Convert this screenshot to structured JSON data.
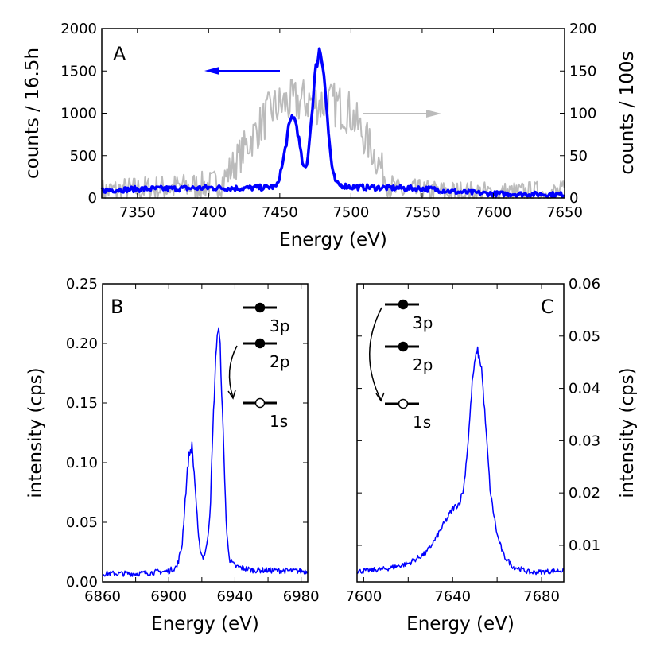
{
  "chart_data": [
    {
      "type": "line",
      "panel_label": "A",
      "xlabel": "Energy (eV)",
      "ylabel": "counts / 16.5h",
      "ylabel_right": "counts / 100s",
      "xlim": [
        7325,
        7650
      ],
      "ylim": [
        0,
        2000
      ],
      "ylim_right": [
        0,
        200
      ],
      "xticks": [
        7350,
        7400,
        7450,
        7500,
        7550,
        7600,
        7650
      ],
      "yticks": [
        0,
        500,
        1000,
        1500,
        2000
      ],
      "yticks_right": [
        0,
        50,
        100,
        150,
        200
      ],
      "grid": false,
      "series": [
        {
          "axis": "left",
          "color": "#0000ff",
          "points": [
            [
              7325,
              90
            ],
            [
              7350,
              105
            ],
            [
              7375,
              110
            ],
            [
              7400,
              120
            ],
            [
              7425,
              115
            ],
            [
              7440,
              125
            ],
            [
              7448,
              135
            ],
            [
              7452,
              400
            ],
            [
              7456,
              800
            ],
            [
              7459,
              990
            ],
            [
              7462,
              850
            ],
            [
              7465,
              500
            ],
            [
              7467,
              330
            ],
            [
              7469,
              380
            ],
            [
              7472,
              900
            ],
            [
              7475,
              1500
            ],
            [
              7478,
              1765
            ],
            [
              7481,
              1500
            ],
            [
              7484,
              800
            ],
            [
              7487,
              300
            ],
            [
              7490,
              160
            ],
            [
              7500,
              130
            ],
            [
              7525,
              120
            ],
            [
              7550,
              110
            ],
            [
              7560,
              100
            ],
            [
              7575,
              70
            ],
            [
              7600,
              50
            ],
            [
              7625,
              45
            ],
            [
              7650,
              40
            ]
          ]
        },
        {
          "axis": "right",
          "color": "#bbbbbb",
          "points": [
            [
              7325,
              8
            ],
            [
              7350,
              10
            ],
            [
              7375,
              12
            ],
            [
              7400,
              15
            ],
            [
              7410,
              20
            ],
            [
              7420,
              45
            ],
            [
              7430,
              70
            ],
            [
              7440,
              95
            ],
            [
              7445,
              105
            ],
            [
              7455,
              112
            ],
            [
              7470,
              115
            ],
            [
              7480,
              112
            ],
            [
              7490,
              110
            ],
            [
              7500,
              100
            ],
            [
              7505,
              85
            ],
            [
              7512,
              65
            ],
            [
              7520,
              40
            ],
            [
              7527,
              15
            ],
            [
              7532,
              8
            ],
            [
              7550,
              7
            ],
            [
              7600,
              5
            ],
            [
              7650,
              6
            ]
          ]
        }
      ],
      "annotations": [
        {
          "type": "arrow",
          "direction": "left",
          "color": "#0000ff",
          "points_to": "left axis"
        },
        {
          "type": "arrow",
          "direction": "right",
          "color": "#bbbbbb",
          "points_to": "right axis"
        }
      ]
    },
    {
      "type": "line",
      "panel_label": "B",
      "xlabel": "Energy (eV)",
      "ylabel": "intensity (cps)",
      "xlim": [
        6860,
        6984
      ],
      "ylim": [
        0,
        0.25
      ],
      "xticks": [
        6860,
        6900,
        6940,
        6980
      ],
      "xticks_minor": [
        6880,
        6920,
        6960
      ],
      "yticks": [
        "0.00",
        "0.05",
        "0.10",
        "0.15",
        "0.20",
        "0.25"
      ],
      "grid": false,
      "series": [
        {
          "color": "#0000ff",
          "points": [
            [
              6860,
              0.007
            ],
            [
              6880,
              0.007
            ],
            [
              6900,
              0.009
            ],
            [
              6905,
              0.013
            ],
            [
              6908,
              0.03
            ],
            [
              6910,
              0.07
            ],
            [
              6912,
              0.105
            ],
            [
              6914,
              0.114
            ],
            [
              6916,
              0.08
            ],
            [
              6918,
              0.035
            ],
            [
              6920,
              0.022
            ],
            [
              6921,
              0.021
            ],
            [
              6923,
              0.03
            ],
            [
              6925,
              0.06
            ],
            [
              6927,
              0.14
            ],
            [
              6929,
              0.205
            ],
            [
              6930,
              0.213
            ],
            [
              6931,
              0.2
            ],
            [
              6933,
              0.12
            ],
            [
              6935,
              0.04
            ],
            [
              6937,
              0.018
            ],
            [
              6940,
              0.013
            ],
            [
              6950,
              0.01
            ],
            [
              6984,
              0.009
            ]
          ]
        }
      ],
      "level_diagram": {
        "levels": [
          "3p",
          "2p",
          "1s"
        ],
        "filled": [
          true,
          true,
          false
        ],
        "transition": "2p → 1s"
      }
    },
    {
      "type": "line",
      "panel_label": "C",
      "xlabel": "Energy (eV)",
      "ylabel": "intensity (cps)",
      "ylabel_side": "right",
      "xlim": [
        7597,
        7690
      ],
      "ylim": [
        0.003,
        0.06
      ],
      "xticks": [
        7600,
        7640,
        7680
      ],
      "xticks_minor": [
        7620,
        7660
      ],
      "yticks": [
        "0.01",
        "0.02",
        "0.03",
        "0.04",
        "0.05",
        "0.06"
      ],
      "grid": false,
      "series": [
        {
          "color": "#0000ff",
          "points": [
            [
              7597,
              0.005
            ],
            [
              7610,
              0.0055
            ],
            [
              7620,
              0.0065
            ],
            [
              7628,
              0.0085
            ],
            [
              7632,
              0.011
            ],
            [
              7636,
              0.014
            ],
            [
              7640,
              0.017
            ],
            [
              7643,
              0.018
            ],
            [
              7645,
              0.021
            ],
            [
              7647,
              0.03
            ],
            [
              7649,
              0.042
            ],
            [
              7651,
              0.0476
            ],
            [
              7653,
              0.044
            ],
            [
              7655,
              0.032
            ],
            [
              7657,
              0.02
            ],
            [
              7660,
              0.012
            ],
            [
              7663,
              0.008
            ],
            [
              7667,
              0.006
            ],
            [
              7675,
              0.0048
            ],
            [
              7690,
              0.0052
            ]
          ]
        }
      ],
      "level_diagram": {
        "levels": [
          "3p",
          "2p",
          "1s"
        ],
        "filled": [
          true,
          true,
          false
        ],
        "transition": "3p → 1s"
      }
    }
  ]
}
